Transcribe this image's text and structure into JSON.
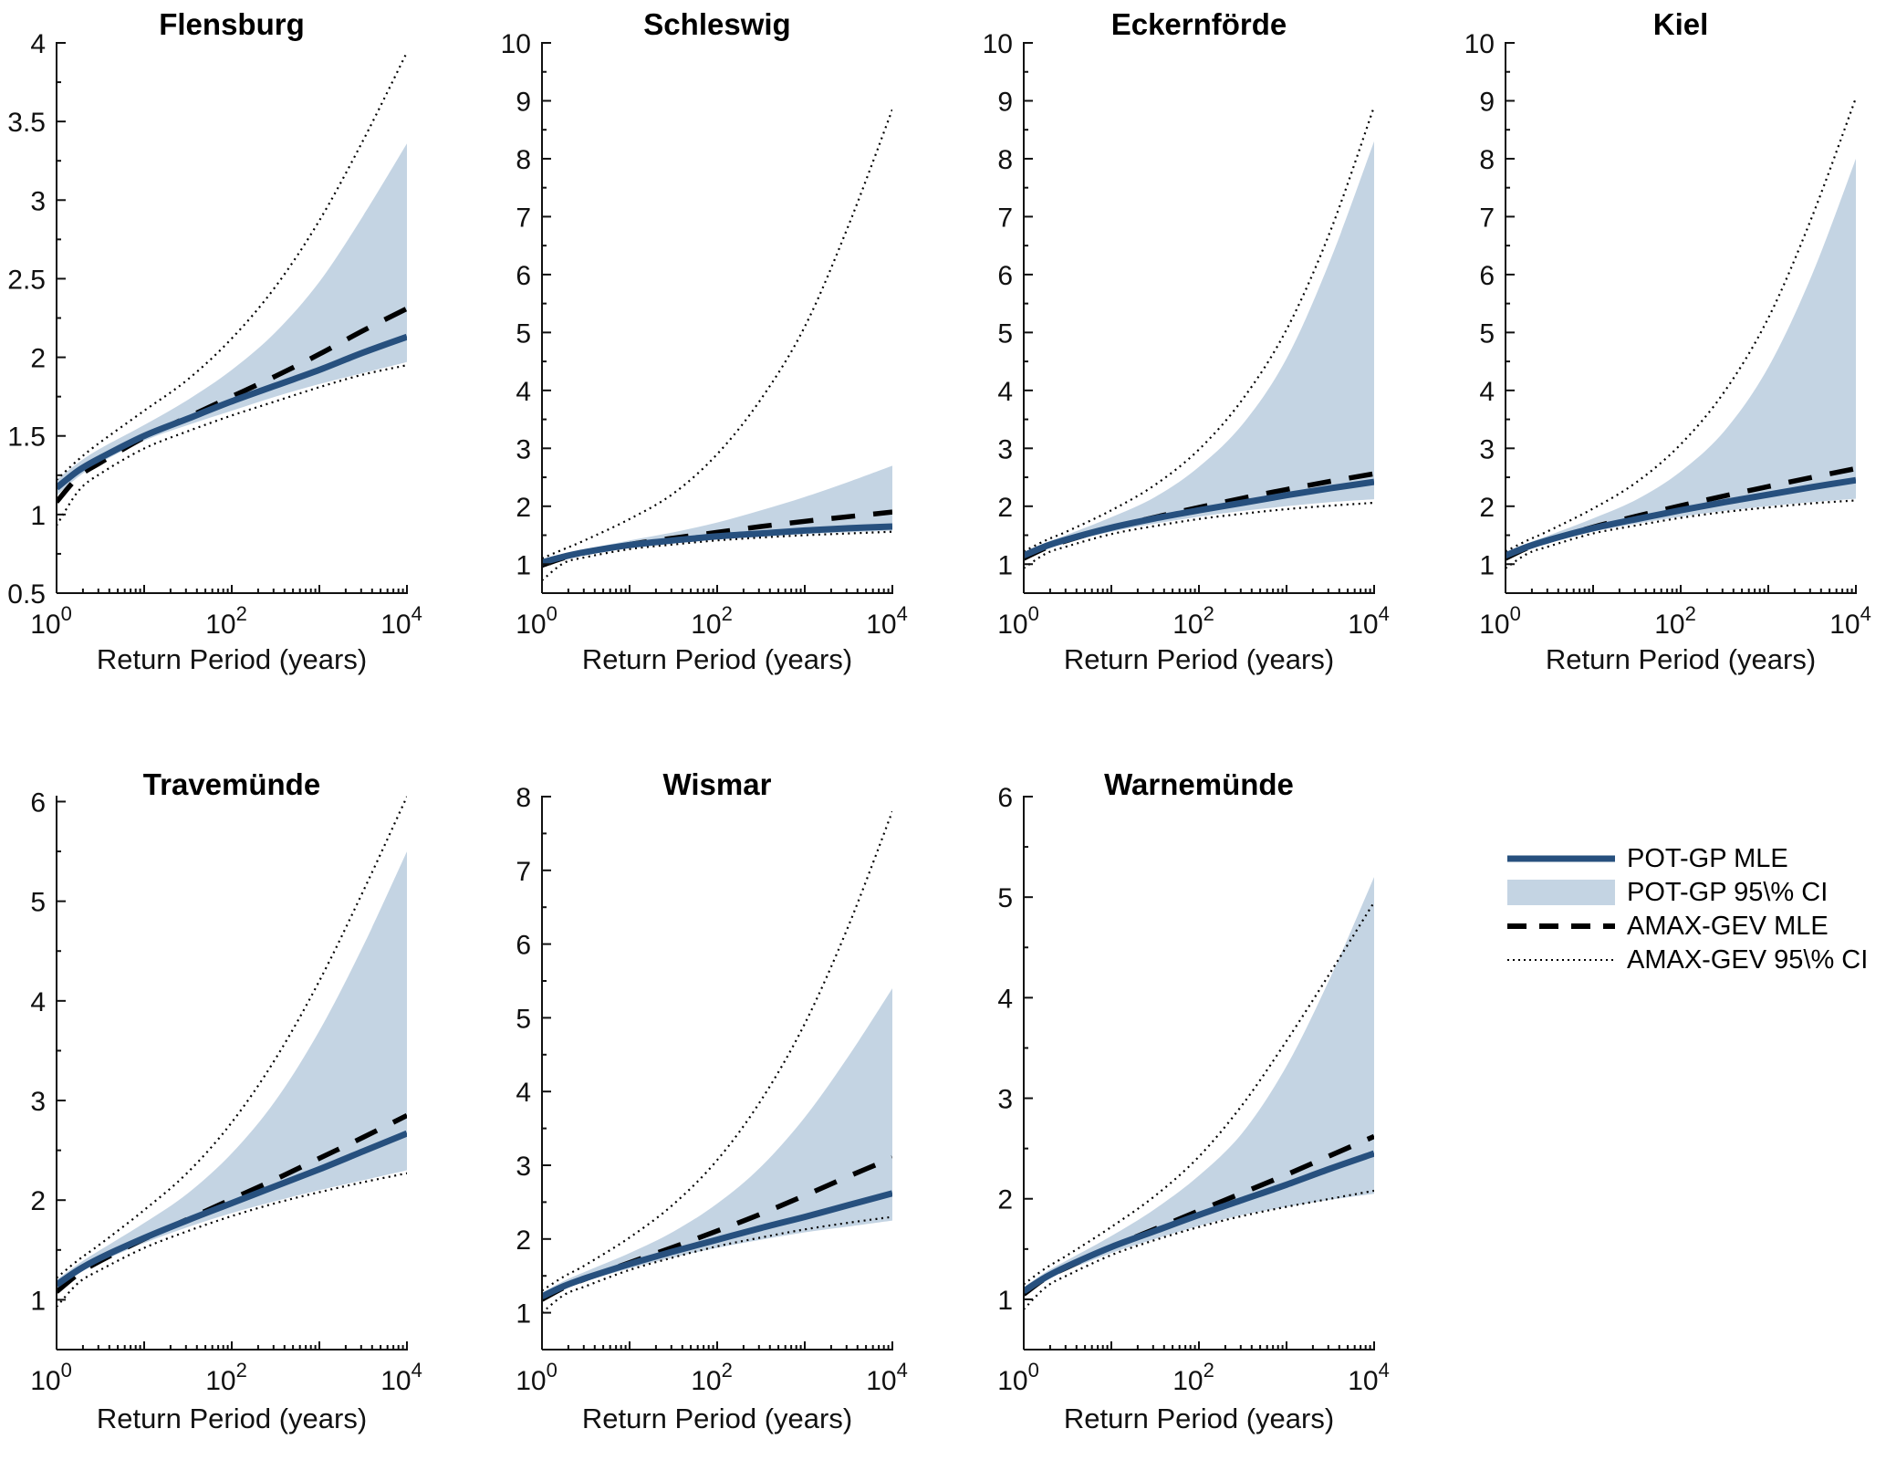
{
  "figure": {
    "xlabel": "Return Period (years)",
    "x_tick_exponents": [
      0,
      2,
      4
    ],
    "colors": {
      "pot_line": "#27507E",
      "pot_ci_fill": "#C4D4E3",
      "amax_line": "#000000",
      "axis": "#111111",
      "background": "#FFFFFF"
    }
  },
  "legend": {
    "items": [
      {
        "label": "POT-GP MLE",
        "type": "line-solid"
      },
      {
        "label": "POT-GP 95\\% CI",
        "type": "patch"
      },
      {
        "label": "AMAX-GEV MLE",
        "type": "line-dashed"
      },
      {
        "label": "AMAX-GEV 95\\% CI",
        "type": "line-dotted"
      }
    ]
  },
  "chart_data": [
    {
      "type": "line",
      "title": "Flensburg",
      "xlabel": "Return Period (years)",
      "xscale": "log10",
      "xlim": [
        1,
        10000
      ],
      "x_log10": [
        0,
        0.25,
        0.5,
        1,
        1.5,
        2,
        2.5,
        3,
        3.5,
        4
      ],
      "ylim": [
        0.5,
        4
      ],
      "yticks": [
        0.5,
        1,
        1.5,
        2,
        2.5,
        3,
        3.5,
        4
      ],
      "ytick_minor_step": 0.25,
      "series": [
        {
          "name": "POT-GP MLE",
          "values": [
            1.17,
            1.28,
            1.36,
            1.5,
            1.61,
            1.72,
            1.82,
            1.92,
            2.03,
            2.13
          ]
        },
        {
          "name": "POT-GP 95% CI lower",
          "values": [
            1.12,
            1.24,
            1.33,
            1.47,
            1.57,
            1.66,
            1.75,
            1.83,
            1.9,
            1.97
          ]
        },
        {
          "name": "POT-GP 95% CI upper",
          "values": [
            1.22,
            1.33,
            1.42,
            1.57,
            1.73,
            1.92,
            2.16,
            2.48,
            2.9,
            3.36
          ]
        },
        {
          "name": "AMAX-GEV MLE",
          "values": [
            1.08,
            1.24,
            1.33,
            1.49,
            1.62,
            1.75,
            1.88,
            2.02,
            2.17,
            2.31
          ]
        },
        {
          "name": "AMAX-GEV 95% CI lower",
          "values": [
            0.93,
            1.15,
            1.26,
            1.42,
            1.53,
            1.63,
            1.72,
            1.81,
            1.89,
            1.95
          ]
        },
        {
          "name": "AMAX-GEV 95% CI upper",
          "values": [
            1.22,
            1.35,
            1.46,
            1.66,
            1.86,
            2.12,
            2.45,
            2.87,
            3.38,
            3.94
          ]
        }
      ]
    },
    {
      "type": "line",
      "title": "Schleswig",
      "xlabel": "Return Period (years)",
      "xscale": "log10",
      "xlim": [
        1,
        10000
      ],
      "x_log10": [
        0,
        0.25,
        0.5,
        1,
        1.5,
        2,
        2.5,
        3,
        3.5,
        4
      ],
      "ylim": [
        0.5,
        10
      ],
      "yticks": [
        1,
        2,
        3,
        4,
        5,
        6,
        7,
        8,
        9,
        10
      ],
      "ytick_minor_step": 0.5,
      "series": [
        {
          "name": "POT-GP MLE",
          "values": [
            1.03,
            1.13,
            1.21,
            1.33,
            1.41,
            1.48,
            1.53,
            1.58,
            1.62,
            1.65
          ]
        },
        {
          "name": "POT-GP 95% CI lower",
          "values": [
            0.99,
            1.09,
            1.17,
            1.29,
            1.37,
            1.43,
            1.48,
            1.52,
            1.55,
            1.58
          ]
        },
        {
          "name": "POT-GP 95% CI upper",
          "values": [
            1.07,
            1.17,
            1.26,
            1.41,
            1.55,
            1.72,
            1.93,
            2.16,
            2.42,
            2.7
          ]
        },
        {
          "name": "AMAX-GEV MLE",
          "values": [
            0.98,
            1.11,
            1.2,
            1.34,
            1.45,
            1.55,
            1.65,
            1.74,
            1.82,
            1.9
          ]
        },
        {
          "name": "AMAX-GEV 95% CI lower",
          "values": [
            0.72,
            1.02,
            1.12,
            1.26,
            1.34,
            1.41,
            1.46,
            1.5,
            1.53,
            1.56
          ]
        },
        {
          "name": "AMAX-GEV 95% CI upper",
          "values": [
            1.1,
            1.26,
            1.42,
            1.78,
            2.22,
            2.9,
            3.85,
            5.1,
            6.85,
            8.85
          ]
        }
      ]
    },
    {
      "type": "line",
      "title": "Eckernförde",
      "xlabel": "Return Period (years)",
      "xscale": "log10",
      "xlim": [
        1,
        10000
      ],
      "x_log10": [
        0,
        0.25,
        0.5,
        1,
        1.5,
        2,
        2.5,
        3,
        3.5,
        4
      ],
      "ylim": [
        0.5,
        10
      ],
      "yticks": [
        1,
        2,
        3,
        4,
        5,
        6,
        7,
        8,
        9,
        10
      ],
      "ytick_minor_step": 0.5,
      "series": [
        {
          "name": "POT-GP MLE",
          "values": [
            1.15,
            1.31,
            1.43,
            1.63,
            1.79,
            1.93,
            2.06,
            2.19,
            2.31,
            2.42
          ]
        },
        {
          "name": "POT-GP 95% CI lower",
          "values": [
            1.1,
            1.26,
            1.38,
            1.56,
            1.7,
            1.82,
            1.92,
            2.0,
            2.07,
            2.12
          ]
        },
        {
          "name": "POT-GP 95% CI upper",
          "values": [
            1.2,
            1.37,
            1.51,
            1.81,
            2.16,
            2.68,
            3.42,
            4.55,
            6.25,
            8.3
          ]
        },
        {
          "name": "AMAX-GEV MLE",
          "values": [
            1.1,
            1.28,
            1.41,
            1.63,
            1.81,
            1.98,
            2.14,
            2.29,
            2.43,
            2.56
          ]
        },
        {
          "name": "AMAX-GEV 95% CI lower",
          "values": [
            0.93,
            1.18,
            1.31,
            1.52,
            1.66,
            1.78,
            1.87,
            1.95,
            2.01,
            2.06
          ]
        },
        {
          "name": "AMAX-GEV 95% CI upper",
          "values": [
            1.22,
            1.41,
            1.57,
            1.93,
            2.37,
            2.98,
            3.85,
            5.05,
            6.75,
            8.9
          ]
        }
      ]
    },
    {
      "type": "line",
      "title": "Kiel",
      "xlabel": "Return Period (years)",
      "xscale": "log10",
      "xlim": [
        1,
        10000
      ],
      "x_log10": [
        0,
        0.25,
        0.5,
        1,
        1.5,
        2,
        2.5,
        3,
        3.5,
        4
      ],
      "ylim": [
        0.5,
        10
      ],
      "yticks": [
        1,
        2,
        3,
        4,
        5,
        6,
        7,
        8,
        9,
        10
      ],
      "ytick_minor_step": 0.5,
      "series": [
        {
          "name": "POT-GP MLE",
          "values": [
            1.15,
            1.3,
            1.42,
            1.62,
            1.78,
            1.93,
            2.07,
            2.2,
            2.33,
            2.45
          ]
        },
        {
          "name": "POT-GP 95% CI lower",
          "values": [
            1.1,
            1.26,
            1.38,
            1.56,
            1.7,
            1.82,
            1.92,
            2.0,
            2.07,
            2.13
          ]
        },
        {
          "name": "POT-GP 95% CI upper",
          "values": [
            1.2,
            1.36,
            1.5,
            1.79,
            2.12,
            2.6,
            3.3,
            4.4,
            6.0,
            8.0
          ]
        },
        {
          "name": "AMAX-GEV MLE",
          "values": [
            1.1,
            1.28,
            1.41,
            1.64,
            1.83,
            2.01,
            2.18,
            2.34,
            2.5,
            2.65
          ]
        },
        {
          "name": "AMAX-GEV 95% CI lower",
          "values": [
            0.93,
            1.18,
            1.31,
            1.53,
            1.67,
            1.8,
            1.9,
            1.98,
            2.05,
            2.1
          ]
        },
        {
          "name": "AMAX-GEV 95% CI upper",
          "values": [
            1.22,
            1.41,
            1.58,
            1.96,
            2.42,
            3.07,
            3.98,
            5.25,
            7.0,
            9.05
          ]
        }
      ]
    },
    {
      "type": "line",
      "title": "Travemünde",
      "xlabel": "Return Period (years)",
      "xscale": "log10",
      "xlim": [
        1,
        10000
      ],
      "x_log10": [
        0,
        0.25,
        0.5,
        1,
        1.5,
        2,
        2.5,
        3,
        3.5,
        4
      ],
      "ylim": [
        0.5,
        6.05
      ],
      "yticks": [
        1,
        2,
        3,
        4,
        5,
        6
      ],
      "ytick_minor_step": 0.5,
      "series": [
        {
          "name": "POT-GP MLE",
          "values": [
            1.15,
            1.3,
            1.42,
            1.62,
            1.8,
            1.97,
            2.14,
            2.31,
            2.49,
            2.67
          ]
        },
        {
          "name": "POT-GP 95% CI lower",
          "values": [
            1.1,
            1.26,
            1.38,
            1.57,
            1.73,
            1.87,
            1.99,
            2.1,
            2.2,
            2.3
          ]
        },
        {
          "name": "POT-GP 95% CI upper",
          "values": [
            1.2,
            1.36,
            1.5,
            1.77,
            2.07,
            2.47,
            3.0,
            3.7,
            4.55,
            5.5
          ]
        },
        {
          "name": "AMAX-GEV MLE",
          "values": [
            1.08,
            1.26,
            1.39,
            1.61,
            1.81,
            2.01,
            2.21,
            2.42,
            2.63,
            2.85
          ]
        },
        {
          "name": "AMAX-GEV 95% CI lower",
          "values": [
            0.93,
            1.17,
            1.3,
            1.52,
            1.69,
            1.84,
            1.97,
            2.08,
            2.18,
            2.27
          ]
        },
        {
          "name": "AMAX-GEV 95% CI upper",
          "values": [
            1.22,
            1.4,
            1.56,
            1.9,
            2.28,
            2.78,
            3.42,
            4.2,
            5.1,
            6.05
          ]
        }
      ]
    },
    {
      "type": "line",
      "title": "Wismar",
      "xlabel": "Return Period (years)",
      "xscale": "log10",
      "xlim": [
        1,
        10000
      ],
      "x_log10": [
        0,
        0.25,
        0.5,
        1,
        1.5,
        2,
        2.5,
        3,
        3.5,
        4
      ],
      "ylim": [
        0.5,
        8
      ],
      "yticks": [
        1,
        2,
        3,
        4,
        5,
        6,
        7,
        8
      ],
      "ytick_minor_step": 0.5,
      "series": [
        {
          "name": "POT-GP MLE",
          "values": [
            1.22,
            1.36,
            1.47,
            1.66,
            1.83,
            1.99,
            2.15,
            2.3,
            2.46,
            2.62
          ]
        },
        {
          "name": "POT-GP 95% CI lower",
          "values": [
            1.17,
            1.32,
            1.43,
            1.6,
            1.75,
            1.88,
            1.99,
            2.09,
            2.17,
            2.25
          ]
        },
        {
          "name": "POT-GP 95% CI upper",
          "values": [
            1.27,
            1.43,
            1.56,
            1.81,
            2.1,
            2.48,
            2.98,
            3.65,
            4.48,
            5.4
          ]
        },
        {
          "name": "AMAX-GEV MLE",
          "values": [
            1.18,
            1.34,
            1.46,
            1.68,
            1.89,
            2.11,
            2.34,
            2.59,
            2.85,
            3.1
          ]
        },
        {
          "name": "AMAX-GEV 95% CI lower",
          "values": [
            1.0,
            1.24,
            1.36,
            1.58,
            1.75,
            1.9,
            2.02,
            2.13,
            2.22,
            2.3
          ]
        },
        {
          "name": "AMAX-GEV 95% CI upper",
          "values": [
            1.3,
            1.49,
            1.65,
            2.02,
            2.47,
            3.07,
            3.88,
            4.92,
            6.25,
            7.8
          ]
        }
      ]
    },
    {
      "type": "line",
      "title": "Warnemünde",
      "xlabel": "Return Period (years)",
      "xscale": "log10",
      "xlim": [
        1,
        10000
      ],
      "x_log10": [
        0,
        0.25,
        0.5,
        1,
        1.5,
        2,
        2.5,
        3,
        3.5,
        4
      ],
      "ylim": [
        0.5,
        6
      ],
      "yticks": [
        1,
        2,
        3,
        4,
        5,
        6
      ],
      "ytick_minor_step": 0.5,
      "series": [
        {
          "name": "POT-GP MLE",
          "values": [
            1.08,
            1.22,
            1.33,
            1.52,
            1.68,
            1.84,
            1.99,
            2.14,
            2.3,
            2.45
          ]
        },
        {
          "name": "POT-GP 95% CI lower",
          "values": [
            1.04,
            1.18,
            1.29,
            1.46,
            1.6,
            1.73,
            1.84,
            1.92,
            1.99,
            2.05
          ]
        },
        {
          "name": "POT-GP 95% CI upper",
          "values": [
            1.12,
            1.27,
            1.39,
            1.63,
            1.9,
            2.23,
            2.66,
            3.32,
            4.2,
            5.2
          ]
        },
        {
          "name": "AMAX-GEV MLE",
          "values": [
            1.05,
            1.21,
            1.32,
            1.52,
            1.7,
            1.88,
            2.06,
            2.24,
            2.43,
            2.62
          ]
        },
        {
          "name": "AMAX-GEV 95% CI lower",
          "values": [
            0.9,
            1.12,
            1.24,
            1.44,
            1.59,
            1.72,
            1.83,
            1.92,
            2.0,
            2.08
          ]
        },
        {
          "name": "AMAX-GEV 95% CI upper",
          "values": [
            1.15,
            1.31,
            1.44,
            1.72,
            2.03,
            2.42,
            2.94,
            3.57,
            4.25,
            4.95
          ]
        }
      ]
    }
  ]
}
